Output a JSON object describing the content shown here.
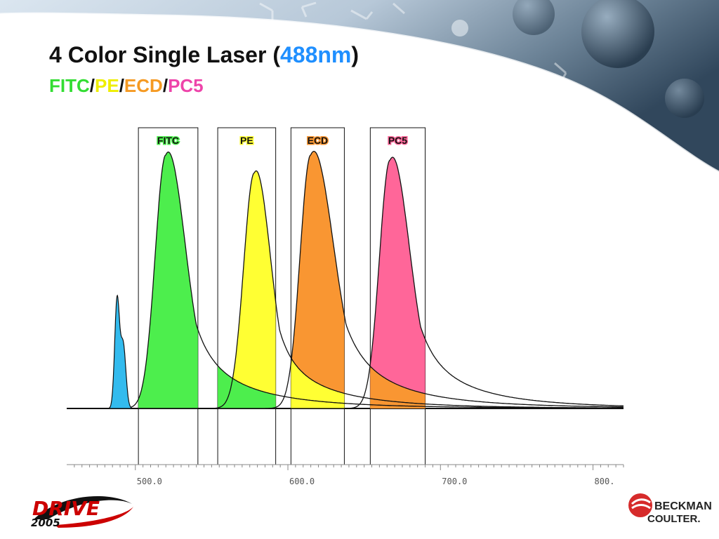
{
  "slide": {
    "title_main": "4 Color Single Laser (",
    "title_highlight": "488nm",
    "title_close": ")",
    "colors": {
      "FITC": "#4dee4d",
      "PE": "#ffff33",
      "ECD": "#f99632",
      "PC5": "#ff6699",
      "laser": "#33bbee",
      "title_highlight": "#1f8fff"
    },
    "subtitle": {
      "FITC": "FITC",
      "PE": "PE",
      "ECD": "ECD",
      "PC5": "PC5",
      "sep": "/"
    }
  },
  "chart_data": {
    "type": "area",
    "title": "",
    "xlabel": "",
    "ylabel": "",
    "xlim": [
      455,
      820
    ],
    "ylim": [
      0,
      1
    ],
    "xticks": [
      "500.0",
      "600.0",
      "700.0",
      "800."
    ],
    "grid": false,
    "series": [
      {
        "name": "FITC",
        "peak_nm": 520,
        "detector_band_nm": [
          502,
          541
        ],
        "rel_height": 0.99
      },
      {
        "name": "PE",
        "peak_nm": 578,
        "detector_band_nm": [
          554,
          592
        ],
        "rel_height": 0.92
      },
      {
        "name": "ECD",
        "peak_nm": 615,
        "detector_band_nm": [
          602,
          637
        ],
        "rel_height": 0.99
      },
      {
        "name": "PC5",
        "peak_nm": 667,
        "detector_band_nm": [
          654,
          690
        ],
        "rel_height": 0.97
      }
    ],
    "laser_line_nm": 488
  },
  "logos": {
    "left_text_1": "DRIVE",
    "left_text_2": "2005",
    "right_text_1": "BECKMAN",
    "right_text_2": "COULTER."
  }
}
